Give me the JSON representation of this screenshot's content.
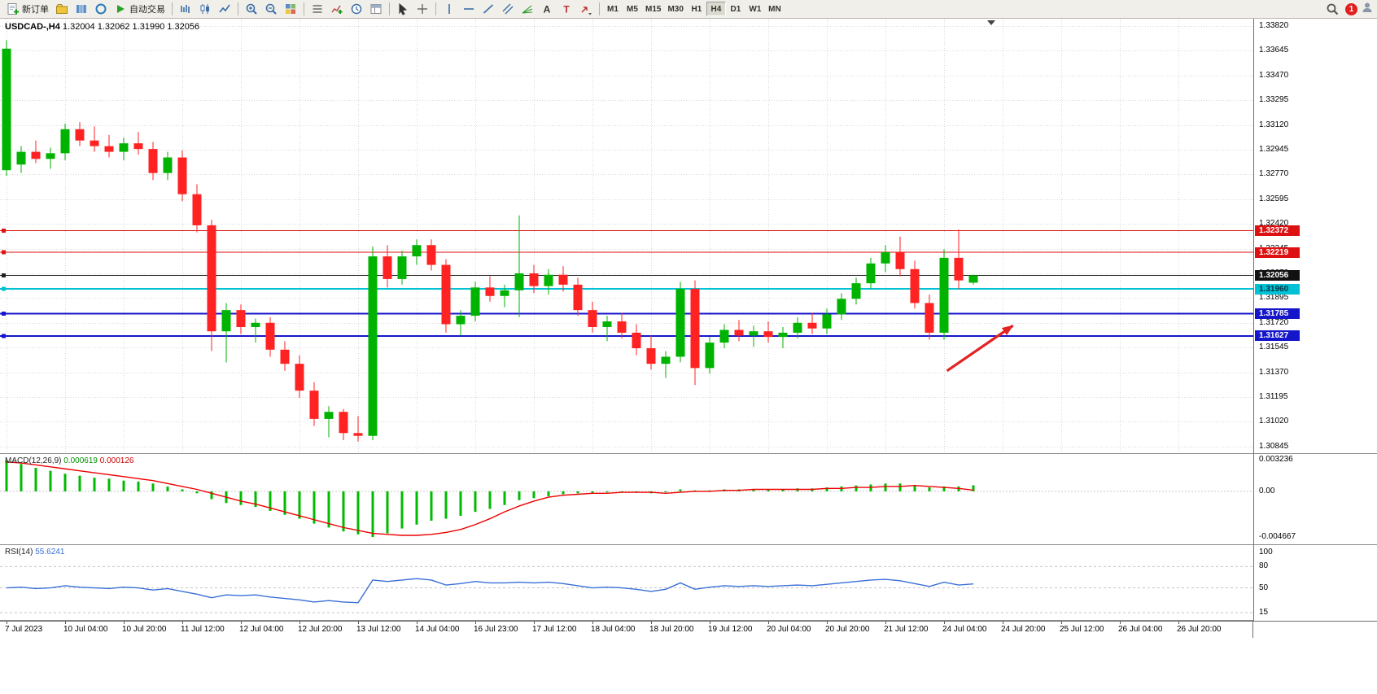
{
  "toolbar": {
    "items": [
      {
        "kind": "button",
        "name": "new-order-button",
        "icon": "new-order",
        "label": "新订单"
      },
      {
        "kind": "button",
        "name": "profiles-button",
        "icon": "folder"
      },
      {
        "kind": "button",
        "name": "market-watch-button",
        "icon": "grid-blue"
      },
      {
        "kind": "button",
        "name": "navigator-button",
        "icon": "circle"
      },
      {
        "kind": "button",
        "name": "auto-trading-button",
        "icon": "play",
        "label": "自动交易"
      },
      {
        "kind": "sep"
      },
      {
        "kind": "button",
        "name": "bar-chart-button",
        "icon": "bars"
      },
      {
        "kind": "button",
        "name": "candlestick-chart-button",
        "icon": "candles"
      },
      {
        "kind": "button",
        "name": "line-chart-button",
        "icon": "line"
      },
      {
        "kind": "sep"
      },
      {
        "kind": "button",
        "name": "zoom-in-button",
        "icon": "zoom-in"
      },
      {
        "kind": "button",
        "name": "zoom-out-button",
        "icon": "zoom-out"
      },
      {
        "kind": "button",
        "name": "tile-windows-button",
        "icon": "tile"
      },
      {
        "kind": "sep"
      },
      {
        "kind": "button",
        "name": "arrange-windows-button",
        "icon": "list"
      },
      {
        "kind": "button",
        "name": "indicators-button",
        "icon": "indicator"
      },
      {
        "kind": "button",
        "name": "periods-button",
        "icon": "clock"
      },
      {
        "kind": "button",
        "name": "templates-button",
        "icon": "template"
      },
      {
        "kind": "sep"
      },
      {
        "kind": "button",
        "name": "cursor-button",
        "icon": "cursor"
      },
      {
        "kind": "button",
        "name": "crosshair-button",
        "icon": "cross"
      },
      {
        "kind": "sep"
      },
      {
        "kind": "button",
        "name": "vertical-line-button",
        "icon": "vline"
      },
      {
        "kind": "button",
        "name": "horizontal-line-button",
        "icon": "hline"
      },
      {
        "kind": "button",
        "name": "trendline-button",
        "icon": "tline"
      },
      {
        "kind": "button",
        "name": "channel-button",
        "icon": "channel"
      },
      {
        "kind": "button",
        "name": "fibonacci-button",
        "icon": "fibo"
      },
      {
        "kind": "button",
        "name": "text-button",
        "icon": "text"
      },
      {
        "kind": "button",
        "name": "text-label-button",
        "icon": "label"
      },
      {
        "kind": "button",
        "name": "arrows-button",
        "icon": "arrow-tool"
      },
      {
        "kind": "sep"
      }
    ],
    "timeframes": [
      "M1",
      "M5",
      "M15",
      "M30",
      "H1",
      "H4",
      "D1",
      "W1",
      "MN"
    ],
    "active_timeframe": "H4",
    "notification_count": "1"
  },
  "chart": {
    "title": "USDCAD-,H4",
    "ohlc": "1.32004 1.32062 1.31990 1.32056",
    "current_price": "1.32056",
    "price_ticks": [
      "1.33820",
      "1.33645",
      "1.33470",
      "1.33295",
      "1.33120",
      "1.32945",
      "1.32770",
      "1.32595",
      "1.32420",
      "1.32245",
      "1.32070",
      "1.31895",
      "1.31720",
      "1.31545",
      "1.31370",
      "1.31195",
      "1.31020",
      "1.30845"
    ],
    "badges": [
      {
        "value": "1.32372",
        "bg": "#dd1111",
        "fg": "#ffffff"
      },
      {
        "value": "1.32219",
        "bg": "#dd1111",
        "fg": "#ffffff"
      },
      {
        "value": "1.32056",
        "bg": "#111111",
        "fg": "#ffffff"
      },
      {
        "value": "1.31960",
        "bg": "#00c2d4",
        "fg": "#003040"
      },
      {
        "value": "1.31785",
        "bg": "#1515cc",
        "fg": "#ffffff"
      },
      {
        "value": "1.31627",
        "bg": "#1515cc",
        "fg": "#ffffff"
      }
    ],
    "levels": [
      {
        "price": 1.32372,
        "color": "#dd1111",
        "width": 1.2
      },
      {
        "price": 1.32219,
        "color": "#dd1111",
        "width": 1.2
      },
      {
        "price": 1.32056,
        "color": "#222222",
        "width": 1.2
      },
      {
        "price": 1.3196,
        "color": "#00c2d4",
        "width": 2
      },
      {
        "price": 1.31785,
        "color": "#1515cc",
        "width": 2
      },
      {
        "price": 1.31627,
        "color": "#1515cc",
        "width": 2
      }
    ],
    "time_labels": [
      "7 Jul 2023",
      "10 Jul 04:00",
      "10 Jul 20:00",
      "11 Jul 12:00",
      "12 Jul 04:00",
      "12 Jul 20:00",
      "13 Jul 12:00",
      "14 Jul 04:00",
      "16 Jul 23:00",
      "17 Jul 12:00",
      "18 Jul 04:00",
      "18 Jul 20:00",
      "19 Jul 12:00",
      "20 Jul 04:00",
      "20 Jul 20:00",
      "21 Jul 12:00",
      "24 Jul 04:00",
      "24 Jul 20:00",
      "25 Jul 12:00",
      "26 Jul 04:00",
      "26 Jul 20:00"
    ],
    "arrow_annotation": {
      "x1_index": 64.2,
      "y1_price": 1.3138,
      "x2_index": 68.7,
      "y2_price": 1.317,
      "color": "#e32222"
    }
  },
  "chart_data": {
    "type": "candlestick",
    "symbol": "USDCAD-",
    "timeframe": "H4",
    "title": "USDCAD-,H4 1.32004 1.32062 1.31990 1.32056",
    "ylim": [
      1.30797,
      1.3386
    ],
    "candles": [
      [
        1.328,
        1.3372,
        1.3276,
        1.3366
      ],
      [
        1.3284,
        1.3297,
        1.3278,
        1.3293
      ],
      [
        1.3293,
        1.3301,
        1.3285,
        1.3288
      ],
      [
        1.3288,
        1.3296,
        1.3281,
        1.3292
      ],
      [
        1.3292,
        1.3313,
        1.3287,
        1.3309
      ],
      [
        1.3309,
        1.3314,
        1.3297,
        1.3301
      ],
      [
        1.3301,
        1.3311,
        1.3293,
        1.3297
      ],
      [
        1.3297,
        1.3305,
        1.3289,
        1.3293
      ],
      [
        1.3293,
        1.3303,
        1.3287,
        1.3299
      ],
      [
        1.3299,
        1.3307,
        1.3291,
        1.3295
      ],
      [
        1.3295,
        1.33,
        1.3273,
        1.3278
      ],
      [
        1.3278,
        1.3293,
        1.3273,
        1.3289
      ],
      [
        1.3289,
        1.3294,
        1.3258,
        1.3263
      ],
      [
        1.3263,
        1.327,
        1.3236,
        1.3241
      ],
      [
        1.3241,
        1.3245,
        1.3152,
        1.3166
      ],
      [
        1.3166,
        1.3186,
        1.3144,
        1.3181
      ],
      [
        1.3181,
        1.3185,
        1.3164,
        1.3169
      ],
      [
        1.3169,
        1.3175,
        1.3158,
        1.3172
      ],
      [
        1.3172,
        1.3176,
        1.3148,
        1.3153
      ],
      [
        1.3153,
        1.3159,
        1.3138,
        1.3143
      ],
      [
        1.3143,
        1.3149,
        1.3119,
        1.3124
      ],
      [
        1.3124,
        1.313,
        1.3099,
        1.3104
      ],
      [
        1.3104,
        1.3113,
        1.3091,
        1.3109
      ],
      [
        1.3109,
        1.3111,
        1.3089,
        1.3094
      ],
      [
        1.3094,
        1.3106,
        1.3088,
        1.3092
      ],
      [
        1.3092,
        1.3226,
        1.3089,
        1.3219
      ],
      [
        1.3219,
        1.3227,
        1.3197,
        1.3203
      ],
      [
        1.3203,
        1.3223,
        1.3199,
        1.3219
      ],
      [
        1.3219,
        1.3231,
        1.3213,
        1.3227
      ],
      [
        1.3227,
        1.3231,
        1.3209,
        1.3213
      ],
      [
        1.3213,
        1.3217,
        1.3165,
        1.3171
      ],
      [
        1.3171,
        1.3181,
        1.3163,
        1.3177
      ],
      [
        1.3177,
        1.3201,
        1.3173,
        1.3197
      ],
      [
        1.3197,
        1.3205,
        1.3187,
        1.3191
      ],
      [
        1.3191,
        1.3199,
        1.3183,
        1.3195
      ],
      [
        1.3195,
        1.3248,
        1.3176,
        1.3207
      ],
      [
        1.3207,
        1.3213,
        1.3193,
        1.3198
      ],
      [
        1.3198,
        1.321,
        1.3192,
        1.3206
      ],
      [
        1.3206,
        1.3212,
        1.3194,
        1.3199
      ],
      [
        1.3199,
        1.3204,
        1.3177,
        1.3181
      ],
      [
        1.3181,
        1.3187,
        1.3165,
        1.3169
      ],
      [
        1.3169,
        1.3177,
        1.3159,
        1.3173
      ],
      [
        1.3173,
        1.3179,
        1.3161,
        1.3165
      ],
      [
        1.3165,
        1.3171,
        1.3149,
        1.3154
      ],
      [
        1.3154,
        1.3163,
        1.3139,
        1.3143
      ],
      [
        1.3143,
        1.3152,
        1.3133,
        1.3148
      ],
      [
        1.3148,
        1.3201,
        1.3144,
        1.3196
      ],
      [
        1.3196,
        1.3202,
        1.3128,
        1.314
      ],
      [
        1.314,
        1.3162,
        1.3136,
        1.3158
      ],
      [
        1.3158,
        1.3171,
        1.3154,
        1.3167
      ],
      [
        1.3167,
        1.3174,
        1.3159,
        1.3163
      ],
      [
        1.3163,
        1.317,
        1.3155,
        1.3166
      ],
      [
        1.3166,
        1.3173,
        1.3158,
        1.3162
      ],
      [
        1.3162,
        1.3169,
        1.3154,
        1.3165
      ],
      [
        1.3165,
        1.3176,
        1.3161,
        1.3172
      ],
      [
        1.3172,
        1.3179,
        1.3164,
        1.3168
      ],
      [
        1.3168,
        1.3182,
        1.3164,
        1.3178
      ],
      [
        1.3178,
        1.3193,
        1.3174,
        1.3189
      ],
      [
        1.3189,
        1.3204,
        1.3185,
        1.32
      ],
      [
        1.32,
        1.3218,
        1.3196,
        1.3214
      ],
      [
        1.3214,
        1.3227,
        1.3208,
        1.3222
      ],
      [
        1.3222,
        1.3233,
        1.3205,
        1.321
      ],
      [
        1.321,
        1.3216,
        1.3182,
        1.3186
      ],
      [
        1.3186,
        1.3192,
        1.316,
        1.3165
      ],
      [
        1.3165,
        1.3224,
        1.316,
        1.3218
      ],
      [
        1.3218,
        1.3238,
        1.3196,
        1.3202
      ],
      [
        1.32004,
        1.32062,
        1.3199,
        1.32056
      ]
    ],
    "indicators": {
      "macd": {
        "label": "MACD(12,26,9)",
        "main_value": "0.000619",
        "signal_value": "0.000126",
        "axis_labels": [
          "0.003236",
          "0.00",
          "-0.004667"
        ],
        "range": [
          -0.004667,
          0.003236
        ],
        "histogram": [
          0.0032,
          0.0028,
          0.0024,
          0.0021,
          0.0018,
          0.0016,
          0.0014,
          0.0013,
          0.0011,
          0.001,
          0.0008,
          0.0005,
          0.0002,
          -0.0002,
          -0.0008,
          -0.0012,
          -0.0014,
          -0.0016,
          -0.002,
          -0.0024,
          -0.0028,
          -0.0033,
          -0.0037,
          -0.0041,
          -0.0044,
          -0.004667,
          -0.0043,
          -0.0038,
          -0.0034,
          -0.003,
          -0.0028,
          -0.0025,
          -0.0021,
          -0.0018,
          -0.0014,
          -0.0009,
          -0.0007,
          -0.0005,
          -0.0003,
          -0.0002,
          -0.0002,
          -0.0001,
          0.0,
          -0.0001,
          -0.0002,
          -0.0001,
          0.0002,
          0.0001,
          0.0001,
          0.0002,
          0.0002,
          0.0002,
          0.0002,
          0.0002,
          0.0003,
          0.0003,
          0.0004,
          0.0005,
          0.0006,
          0.0007,
          0.0008,
          0.0008,
          0.0006,
          0.0004,
          0.0005,
          0.0005,
          0.000619
        ],
        "signal": [
          0.003,
          0.0029,
          0.0027,
          0.0025,
          0.0023,
          0.0021,
          0.0019,
          0.0017,
          0.0015,
          0.0013,
          0.0011,
          0.0008,
          0.0005,
          0.0002,
          -0.0002,
          -0.0006,
          -0.001,
          -0.0013,
          -0.0017,
          -0.0021,
          -0.0025,
          -0.0029,
          -0.0033,
          -0.0037,
          -0.004,
          -0.0043,
          -0.0044,
          -0.0045,
          -0.0045,
          -0.0044,
          -0.0042,
          -0.0039,
          -0.0034,
          -0.0028,
          -0.0021,
          -0.0015,
          -0.001,
          -0.0006,
          -0.0004,
          -0.0003,
          -0.0002,
          -0.0002,
          -0.0001,
          -0.0001,
          -0.0001,
          -0.0002,
          -0.0001,
          0.0,
          0.0,
          0.0001,
          0.0001,
          0.0002,
          0.0002,
          0.0002,
          0.0002,
          0.0002,
          0.0003,
          0.0003,
          0.0004,
          0.0004,
          0.0005,
          0.0005,
          0.0006,
          0.0005,
          0.0004,
          0.0003,
          0.000126
        ]
      },
      "rsi": {
        "label": "RSI(14)",
        "value": "55.6241",
        "axis_labels": [
          "100",
          "80",
          "50",
          "15"
        ],
        "levels": [
          80,
          50,
          15
        ],
        "range": [
          0,
          100
        ],
        "values": [
          50,
          51,
          49,
          50,
          53,
          51,
          50,
          49,
          51,
          50,
          47,
          49,
          45,
          41,
          36,
          40,
          39,
          40,
          37,
          35,
          33,
          30,
          32,
          30,
          29,
          61,
          59,
          61,
          63,
          61,
          54,
          56,
          59,
          57,
          57,
          58,
          57,
          58,
          56,
          53,
          50,
          51,
          50,
          48,
          45,
          48,
          57,
          48,
          51,
          53,
          52,
          53,
          52,
          53,
          54,
          53,
          55,
          57,
          59,
          61,
          62,
          60,
          56,
          52,
          58,
          54,
          55.62
        ]
      }
    }
  },
  "colors": {
    "bull": "#00b300",
    "bear": "#ff2222",
    "macd_hist": "#00bb00",
    "macd_signal": "#ee0000",
    "rsi_line": "#3a6fd8",
    "grid": "#d9d9d9",
    "arrow": "#e32222"
  }
}
